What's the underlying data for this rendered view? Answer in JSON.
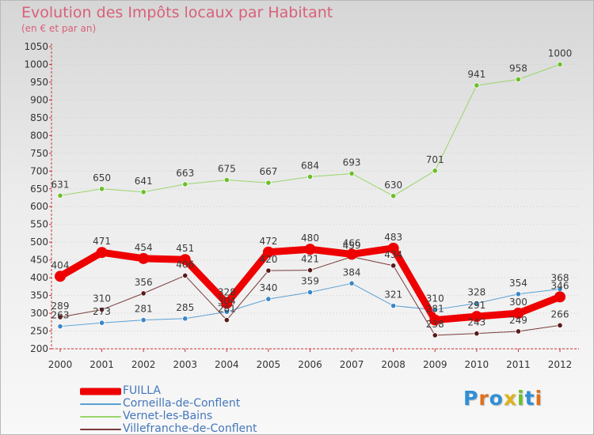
{
  "title": "Evolution des Impôts locaux par Habitant",
  "subtitle": "(en € et par an)",
  "logo": {
    "letters": [
      "P",
      "r",
      "o",
      "x",
      "i",
      "t",
      "i"
    ],
    "colors": [
      "#2f8fd6",
      "#e0711c",
      "#2f8fd6",
      "#e0b21c",
      "#6cbf2a",
      "#2f8fd6",
      "#e0711c"
    ]
  },
  "chart_data": {
    "type": "line",
    "title": "Evolution des Impôts locaux par Habitant",
    "subtitle": "(en € et par an)",
    "xlabel": "",
    "ylabel": "",
    "ylim": [
      200,
      1050
    ],
    "yticks": [
      200,
      250,
      300,
      350,
      400,
      450,
      500,
      550,
      600,
      650,
      700,
      750,
      800,
      850,
      900,
      950,
      1000,
      1050
    ],
    "categories": [
      "2000",
      "2001",
      "2002",
      "2003",
      "2004",
      "2005",
      "2006",
      "2007",
      "2008",
      "2009",
      "2010",
      "2011",
      "2012"
    ],
    "series": [
      {
        "name": "Corneilla-de-Conflent",
        "color": "#5a9fd4",
        "marker": "#3a86c8",
        "width": 1,
        "values": [
          263,
          273,
          281,
          285,
          304,
          340,
          359,
          384,
          321,
          310,
          328,
          354,
          368
        ],
        "labels": [
          "263",
          "273",
          "281",
          "285",
          "304",
          "340",
          "359",
          "384",
          "321",
          "310",
          "328",
          "354",
          "368"
        ]
      },
      {
        "name": "Vernet-les-Bains",
        "color": "#99d66a",
        "marker": "#6cbf2a",
        "width": 1,
        "values": [
          631,
          650,
          641,
          663,
          675,
          667,
          684,
          693,
          630,
          701,
          941,
          958,
          1000
        ],
        "labels": [
          "631",
          "650",
          "641",
          "663",
          "675",
          "667",
          "684",
          "693",
          "630",
          "701",
          "941",
          "958",
          "1000"
        ]
      },
      {
        "name": "Villefranche-de-Conflent",
        "color": "#7a3a3a",
        "marker": "#5a1a1a",
        "width": 1,
        "values": [
          289,
          310,
          356,
          406,
          281,
          420,
          421,
          459,
          434,
          238,
          243,
          249,
          266
        ],
        "labels": [
          "289",
          "310",
          "356",
          "406",
          "281",
          "420",
          "421",
          "459",
          "434",
          "238",
          "243",
          "249",
          "266"
        ]
      },
      {
        "name": "FUILLA",
        "color": "#ee0000",
        "marker": "#ee0000",
        "width": 9,
        "values": [
          404,
          471,
          454,
          451,
          328,
          472,
          480,
          466,
          483,
          281,
          291,
          300,
          346
        ],
        "labels": [
          "404",
          "471",
          "454",
          "451",
          "328",
          "472",
          "480",
          "466",
          "483",
          "281",
          "291",
          "300",
          "346"
        ]
      }
    ],
    "legend": [
      {
        "name": "FUILLA",
        "color": "#ee0000",
        "thickness": 9
      },
      {
        "name": "Corneilla-de-Conflent",
        "color": "#5a9fd4",
        "thickness": 2
      },
      {
        "name": "Vernet-les-Bains",
        "color": "#99d66a",
        "thickness": 2
      },
      {
        "name": "Villefranche-de-Conflent",
        "color": "#7a3a3a",
        "thickness": 2
      }
    ],
    "legend_position": "bottom-left",
    "grid": "horizontal-dotted",
    "axis_color": "#cc3333"
  }
}
